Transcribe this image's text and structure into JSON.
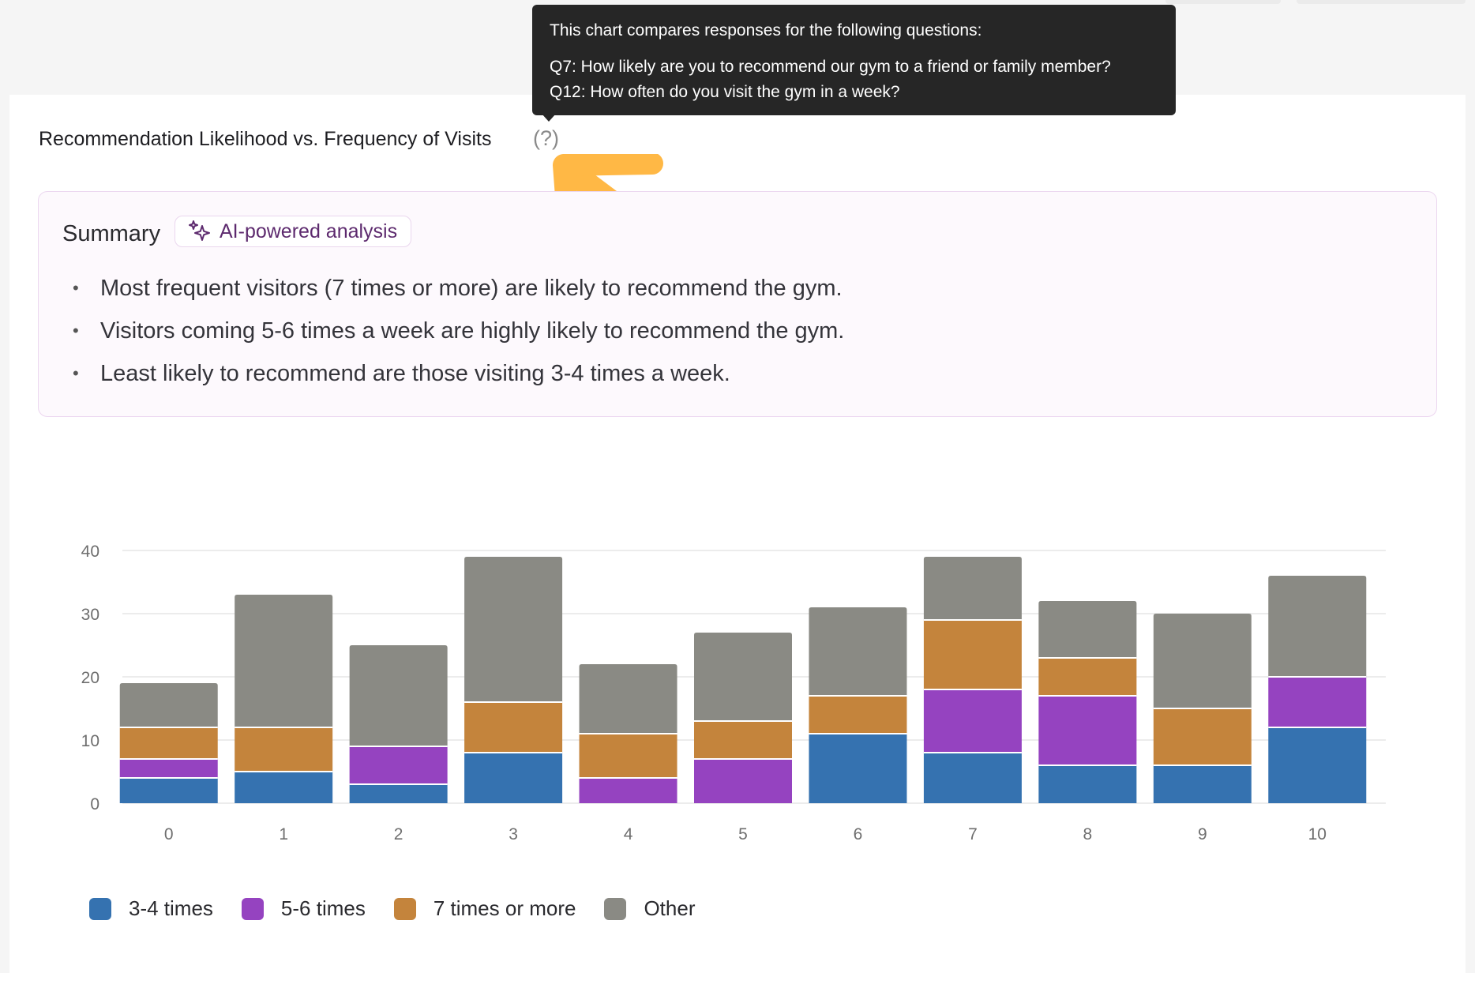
{
  "card": {
    "title": "Recommendation Likelihood vs. Frequency of Visits",
    "help_label": "(?)"
  },
  "tooltip": {
    "intro": "This chart compares responses for the following questions:",
    "q7": "Q7: How likely are you to recommend our gym to a friend or family member?",
    "q12": "Q12: How often do you visit the gym in a week?"
  },
  "summary": {
    "title": "Summary",
    "badge_label": "AI-powered analysis",
    "bullets": [
      "Most frequent visitors (7 times or more) are likely to recommend the gym.",
      "Visitors coming 5-6 times a week are highly likely to recommend the gym.",
      "Least likely to recommend are those visiting 3-4 times a week."
    ]
  },
  "colors": {
    "accent_arrow": "#ffb845",
    "tooltip_bg": "#262626",
    "summary_border": "#ecd7f0"
  },
  "icons": {
    "help": "question-mark-icon",
    "ai": "sparkle-icon",
    "annotation": "arrow-icon"
  },
  "chart_data": {
    "type": "bar",
    "stacked": true,
    "categories": [
      "0",
      "1",
      "2",
      "3",
      "4",
      "5",
      "6",
      "7",
      "8",
      "9",
      "10"
    ],
    "series": [
      {
        "name": "3-4 times",
        "color": "#3572b0",
        "values": [
          4,
          5,
          3,
          8,
          0,
          0,
          11,
          8,
          6,
          6,
          12
        ]
      },
      {
        "name": "5-6 times",
        "color": "#9543c0",
        "values": [
          3,
          0,
          6,
          0,
          4,
          7,
          0,
          10,
          11,
          0,
          8
        ]
      },
      {
        "name": "7 times or more",
        "color": "#c4843c",
        "values": [
          5,
          7,
          0,
          8,
          7,
          6,
          6,
          11,
          6,
          9,
          0
        ]
      },
      {
        "name": "Other",
        "color": "#8a8a84",
        "values": [
          7,
          21,
          16,
          23,
          11,
          14,
          14,
          10,
          9,
          15,
          16
        ]
      }
    ],
    "ylim": [
      0,
      40
    ],
    "yticks": [
      "0",
      "10",
      "20",
      "30",
      "40"
    ],
    "xlabel": "",
    "ylabel": "",
    "grid": true,
    "legend_position": "bottom-left"
  }
}
